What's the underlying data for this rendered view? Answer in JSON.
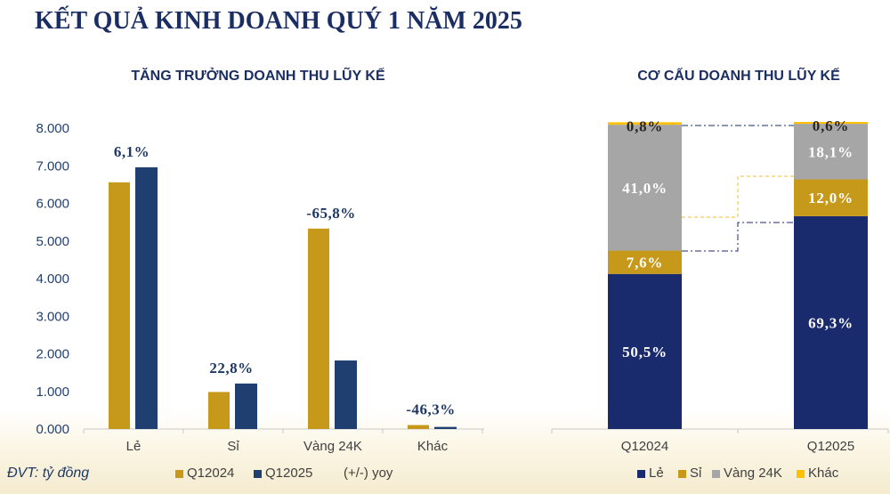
{
  "title": "KẾT QUẢ KINH DOANH QUÝ 1 NĂM 2025",
  "unit_note": "ĐVT: tỷ đồng",
  "colors": {
    "title": "#1b2e63",
    "gold": "#c6991a",
    "navy": "#1f3f70",
    "dark_navy": "#1a2b6d",
    "gray": "#a6a6a6",
    "yellow": "#ffc000"
  },
  "chart_data": [
    {
      "type": "bar",
      "title": "TĂNG TRƯỞNG DOANH THU LŨY KẾ",
      "categories": [
        "Lẻ",
        "Sỉ",
        "Vàng 24K",
        "Khác"
      ],
      "series": [
        {
          "name": "Q12024",
          "color": "#c6991a",
          "values": [
            6560,
            985,
            5330,
            105
          ]
        },
        {
          "name": "Q12025",
          "color": "#1f3f70",
          "values": [
            6960,
            1210,
            1823,
            56
          ]
        }
      ],
      "yoy_labels": [
        "6,1%",
        "22,8%",
        "-65,8%",
        "-46,3%"
      ],
      "yoy_legend": "(+/-) yoy",
      "ylim": [
        0,
        8000
      ],
      "yticks": [
        0,
        1000,
        2000,
        3000,
        4000,
        5000,
        6000,
        7000,
        8000
      ],
      "ytick_labels": [
        "0.000",
        "1.000",
        "2.000",
        "3.000",
        "4.000",
        "5.000",
        "6.000",
        "7.000",
        "8.000"
      ],
      "grid": false,
      "legend": "bottom-left"
    },
    {
      "type": "bar",
      "stacked": true,
      "title": "CƠ CẤU DOANH THU LŨY KẾ",
      "categories": [
        "Q12024",
        "Q12025"
      ],
      "series": [
        {
          "name": "Lẻ",
          "color": "#1a2b6d",
          "values": [
            50.5,
            69.3
          ],
          "labels": [
            "50,5%",
            "69,3%"
          ]
        },
        {
          "name": "Sỉ",
          "color": "#c6991a",
          "values": [
            7.6,
            12.0
          ],
          "labels": [
            "7,6%",
            "12,0%"
          ]
        },
        {
          "name": "Vàng 24K",
          "color": "#a6a6a6",
          "values": [
            41.0,
            18.1
          ],
          "labels": [
            "41,0%",
            "18,1%"
          ]
        },
        {
          "name": "Khác",
          "color": "#ffc000",
          "values": [
            0.8,
            0.6
          ],
          "labels": [
            "0,8%",
            "0,6%"
          ]
        }
      ],
      "ylim": [
        0,
        100
      ],
      "grid": false,
      "legend": "bottom-right"
    }
  ]
}
